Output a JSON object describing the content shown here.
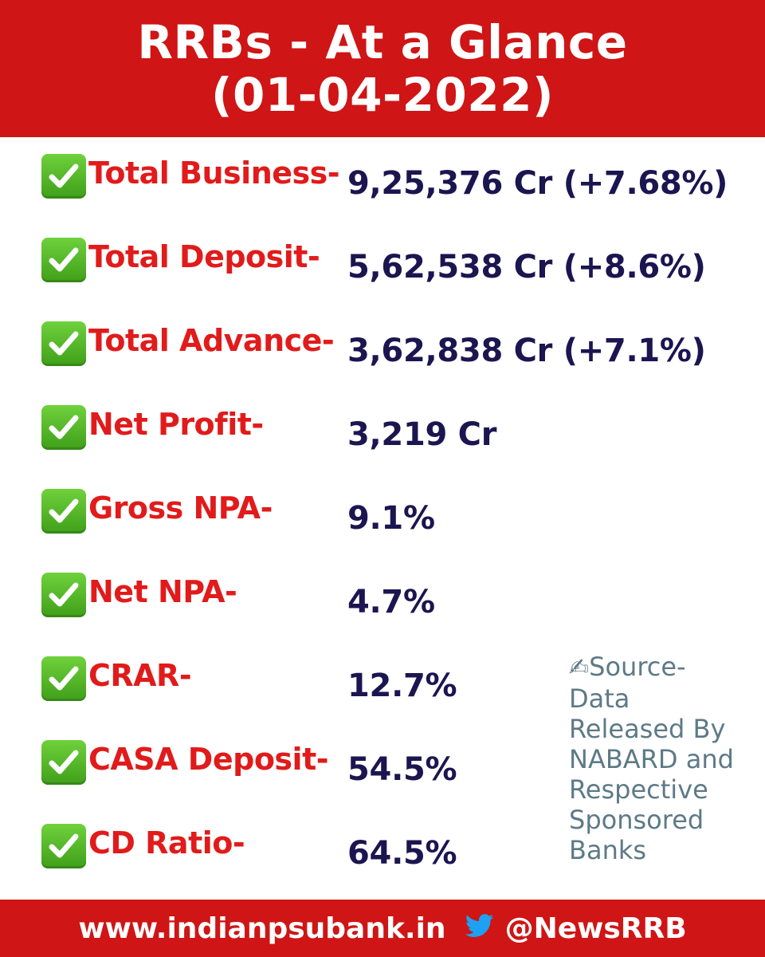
{
  "header": {
    "title_line1": "RRBs - At a Glance",
    "title_line2": "(01-04-2022)"
  },
  "rows": [
    {
      "icon": "check-mark-icon",
      "label": "Total Business-",
      "value": "9,25,376 Cr (+7.68%)"
    },
    {
      "icon": "check-mark-icon",
      "label": "Total Deposit-",
      "value": "5,62,538 Cr (+8.6%)"
    },
    {
      "icon": "check-mark-icon",
      "label": "Total Advance-",
      "value": "3,62,838 Cr (+7.1%)"
    },
    {
      "icon": "check-mark-icon",
      "label": "Net Profit-",
      "value": "3,219 Cr"
    },
    {
      "icon": "check-mark-icon",
      "label": "Gross NPA-",
      "value": "9.1%"
    },
    {
      "icon": "check-mark-icon",
      "label": "Net NPA-",
      "value": "4.7%"
    },
    {
      "icon": "check-mark-icon",
      "label": "CRAR-",
      "value": "12.7%"
    },
    {
      "icon": "check-mark-icon",
      "label": "CASA Deposit-",
      "value": "54.5%"
    },
    {
      "icon": "check-mark-icon",
      "label": "CD Ratio-",
      "value": "64.5%"
    }
  ],
  "source": {
    "icon": "writing-hand-icon",
    "line1": "Source-",
    "line2": "Data",
    "line3": "Released By",
    "line4": "NABARD and",
    "line5": "Respective",
    "line6": "Sponsored",
    "line7": "Banks"
  },
  "footer": {
    "website": "www.indianpsubank.in",
    "twitter_icon": "twitter-bird-icon",
    "handle": "@NewsRRB"
  },
  "colors": {
    "banner_red": "#cf1515",
    "label_red": "#e11b1b",
    "value_navy": "#1b1550",
    "source_gray": "#5d7a86",
    "check_green": "#4fb52a",
    "twitter_blue": "#1da1f2"
  }
}
